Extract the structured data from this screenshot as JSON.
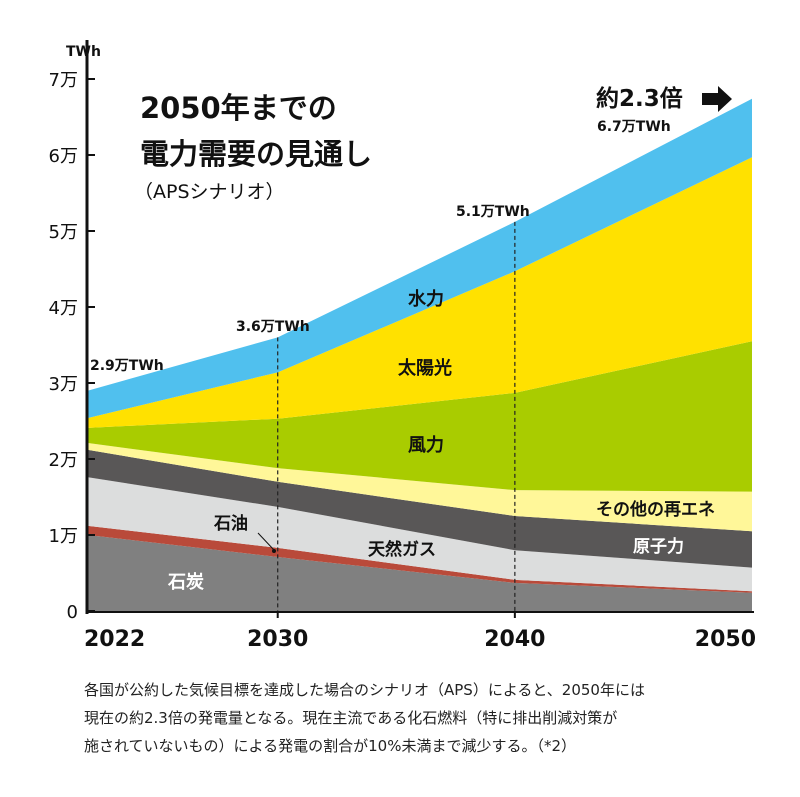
{
  "chart_data": {
    "type": "area",
    "stacked": true,
    "title": [
      "2050年までの",
      "電力需要の見通し"
    ],
    "subtitle": "（APSシナリオ）",
    "ylabel": "TWh",
    "unit": "万TWh",
    "ylim": [
      0,
      7
    ],
    "yticks": [
      0,
      1,
      2,
      3,
      4,
      5,
      6,
      7
    ],
    "ytick_labels": [
      "0",
      "1万",
      "2万",
      "3万",
      "4万",
      "5万",
      "6万",
      "7万"
    ],
    "x": [
      2022,
      2030,
      2040,
      2050
    ],
    "xtick_labels": [
      "2022",
      "2030",
      "2040",
      "2050"
    ],
    "grid": false,
    "series": [
      {
        "name": "石炭",
        "color": "#808080",
        "values": [
          1.0,
          0.71,
          0.37,
          0.24
        ]
      },
      {
        "name": "石油",
        "color": "#b94a3a",
        "values": [
          0.12,
          0.12,
          0.04,
          0.02
        ]
      },
      {
        "name": "天然ガス",
        "color": "#dcdddd",
        "values": [
          0.64,
          0.54,
          0.39,
          0.31
        ]
      },
      {
        "name": "原子力",
        "color": "#595757",
        "values": [
          0.36,
          0.33,
          0.45,
          0.48
        ]
      },
      {
        "name": "その他の再エネ",
        "color": "#fff799",
        "values": [
          0.09,
          0.18,
          0.34,
          0.52
        ]
      },
      {
        "name": "風力",
        "color": "#a9cc00",
        "values": [
          0.2,
          0.65,
          1.28,
          1.98
        ]
      },
      {
        "name": "太陽光",
        "color": "#ffe100",
        "values": [
          0.13,
          0.61,
          1.6,
          2.42
        ]
      },
      {
        "name": "水力",
        "color": "#50c0ee",
        "values": [
          0.36,
          0.46,
          0.65,
          0.77
        ]
      }
    ],
    "total_labels": [
      "2.9万TWh",
      "3.6万TWh",
      "5.1万TWh",
      "6.7万TWh"
    ],
    "growth_label": "約2.3倍",
    "growth_icon": "right-arrow-icon"
  },
  "caption": [
    "各国が公約した気候目標を達成した場合のシナリオ（APS）によると、2050年には",
    "現在の約2.3倍の発電量となる。現在主流である化石燃料（特に排出削減対策が",
    "施されていないもの）による発電の割合が10%未満まで減少する。（*2）"
  ]
}
